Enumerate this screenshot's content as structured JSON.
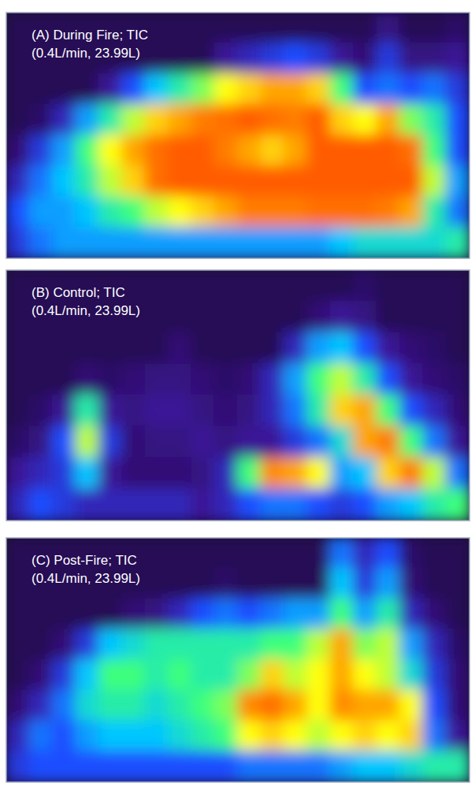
{
  "chart_data": [
    {
      "type": "heatmap",
      "title": "(A) During Fire; TIC",
      "subtitle": "(0.4L/min, 23.99L)",
      "tick_labels": false,
      "zlim": [
        0,
        100
      ],
      "cells": [
        [
          5,
          5,
          5,
          5,
          5,
          5,
          5,
          5,
          5,
          5,
          5,
          5,
          5,
          5,
          5,
          5,
          12,
          5,
          5,
          8
        ],
        [
          5,
          5,
          5,
          5,
          5,
          5,
          5,
          5,
          5,
          15,
          20,
          25,
          30,
          25,
          15,
          10,
          25,
          12,
          12,
          15
        ],
        [
          5,
          5,
          5,
          5,
          15,
          30,
          45,
          55,
          65,
          75,
          80,
          85,
          85,
          80,
          60,
          30,
          35,
          30,
          35,
          25
        ],
        [
          5,
          8,
          20,
          40,
          55,
          70,
          80,
          85,
          90,
          92,
          95,
          92,
          90,
          95,
          80,
          75,
          85,
          65,
          55,
          30
        ],
        [
          10,
          25,
          40,
          60,
          75,
          85,
          92,
          95,
          95,
          90,
          85,
          80,
          85,
          95,
          95,
          95,
          95,
          92,
          60,
          30
        ],
        [
          20,
          35,
          45,
          55,
          70,
          80,
          92,
          95,
          95,
          95,
          95,
          95,
          95,
          95,
          95,
          95,
          95,
          95,
          70,
          40
        ],
        [
          30,
          40,
          40,
          45,
          55,
          60,
          70,
          75,
          80,
          85,
          90,
          90,
          90,
          92,
          92,
          92,
          90,
          85,
          55,
          35
        ],
        [
          25,
          35,
          40,
          40,
          40,
          40,
          40,
          40,
          40,
          40,
          40,
          40,
          40,
          40,
          45,
          50,
          50,
          50,
          50,
          55
        ]
      ]
    },
    {
      "type": "heatmap",
      "title": "(B) Control; TIC",
      "subtitle": "(0.4L/min, 23.99L)",
      "tick_labels": false,
      "zlim": [
        0,
        100
      ],
      "cells": [
        [
          5,
          5,
          5,
          5,
          5,
          5,
          5,
          5,
          5,
          5,
          5,
          5,
          5,
          5,
          5,
          8,
          5,
          5,
          5,
          5
        ],
        [
          5,
          5,
          5,
          5,
          5,
          5,
          5,
          5,
          5,
          5,
          5,
          5,
          5,
          10,
          15,
          12,
          5,
          5,
          5,
          5
        ],
        [
          5,
          5,
          5,
          5,
          5,
          5,
          5,
          10,
          5,
          5,
          5,
          5,
          20,
          40,
          45,
          30,
          15,
          10,
          8,
          5
        ],
        [
          5,
          5,
          5,
          10,
          8,
          10,
          12,
          12,
          10,
          8,
          10,
          20,
          40,
          60,
          70,
          55,
          30,
          15,
          10,
          8
        ],
        [
          5,
          8,
          15,
          55,
          15,
          12,
          15,
          15,
          12,
          10,
          12,
          20,
          35,
          55,
          80,
          85,
          60,
          30,
          20,
          10
        ],
        [
          8,
          12,
          30,
          70,
          25,
          10,
          12,
          12,
          15,
          12,
          15,
          15,
          25,
          35,
          50,
          85,
          90,
          60,
          35,
          15
        ],
        [
          15,
          20,
          25,
          45,
          15,
          10,
          10,
          10,
          12,
          20,
          60,
          88,
          85,
          75,
          40,
          45,
          80,
          90,
          70,
          35
        ],
        [
          20,
          30,
          25,
          20,
          20,
          20,
          20,
          20,
          15,
          20,
          30,
          35,
          35,
          30,
          25,
          30,
          40,
          45,
          55,
          60
        ]
      ]
    },
    {
      "type": "heatmap",
      "title": "(C) Post-Fire; TIC",
      "subtitle": "(0.4L/min, 23.99L)",
      "tick_labels": false,
      "zlim": [
        0,
        100
      ],
      "cells": [
        [
          5,
          5,
          5,
          5,
          5,
          5,
          5,
          5,
          5,
          5,
          5,
          5,
          5,
          5,
          35,
          20,
          30,
          8,
          5,
          5
        ],
        [
          5,
          5,
          5,
          5,
          5,
          5,
          5,
          5,
          5,
          8,
          5,
          5,
          5,
          5,
          45,
          25,
          40,
          10,
          5,
          5
        ],
        [
          5,
          5,
          5,
          5,
          5,
          10,
          12,
          20,
          30,
          35,
          30,
          35,
          40,
          40,
          60,
          40,
          55,
          20,
          10,
          5
        ],
        [
          5,
          5,
          10,
          25,
          45,
          50,
          55,
          55,
          55,
          55,
          55,
          60,
          60,
          70,
          85,
          65,
          70,
          40,
          20,
          8
        ],
        [
          5,
          10,
          25,
          45,
          60,
          60,
          55,
          60,
          55,
          55,
          65,
          80,
          70,
          75,
          85,
          75,
          70,
          50,
          25,
          10
        ],
        [
          10,
          20,
          35,
          50,
          55,
          55,
          50,
          55,
          60,
          65,
          88,
          92,
          85,
          75,
          88,
          85,
          85,
          75,
          30,
          10
        ],
        [
          20,
          35,
          30,
          40,
          45,
          45,
          45,
          50,
          55,
          60,
          75,
          80,
          75,
          70,
          75,
          80,
          75,
          80,
          35,
          15
        ],
        [
          25,
          30,
          30,
          30,
          30,
          30,
          30,
          30,
          30,
          30,
          35,
          35,
          35,
          35,
          40,
          45,
          45,
          50,
          55,
          55
        ]
      ]
    }
  ]
}
